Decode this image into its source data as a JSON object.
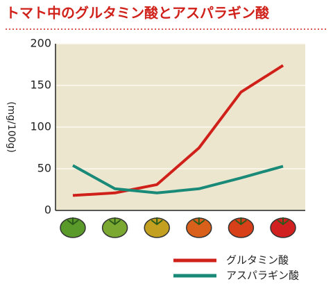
{
  "chart_data": {
    "type": "line",
    "title": "トマト中のグルタミン酸とアスパラギン酸",
    "y_label": "(mg/100g)",
    "categories": [
      null,
      null,
      null,
      null,
      null,
      null
    ],
    "series": [
      {
        "name": "グルタミン酸",
        "color": "#d0201a",
        "values": [
          18,
          21,
          31,
          75,
          142,
          174
        ]
      },
      {
        "name": "アスパラギン酸",
        "color": "#1a8a78",
        "values": [
          54,
          26,
          21,
          26,
          39,
          53
        ]
      }
    ],
    "ylim": [
      0,
      200
    ],
    "yticks": [
      0,
      50,
      100,
      150,
      200
    ],
    "grid": true,
    "legend": "bottom-right"
  }
}
